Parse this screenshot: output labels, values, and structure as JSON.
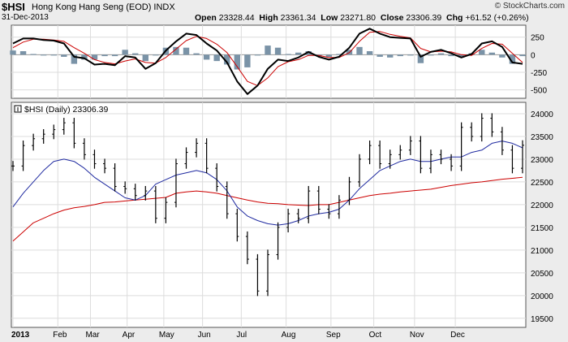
{
  "header": {
    "symbol": "$HSI",
    "name": "Hong Kong Hang Seng (EOD)  INDX",
    "date": "31-Dec-2013",
    "open_label": "Open",
    "open": "23328.44",
    "high_label": "High",
    "high": "23361.34",
    "low_label": "Low",
    "low": "23271.80",
    "close_label": "Close",
    "close": "23306.39",
    "chg_label": "Chg",
    "chg": "+61.52 (+0.26%)",
    "brand": "© StockCharts.com"
  },
  "price_legend": "$HSI (Daily) 23306.39",
  "chart_data": [
    {
      "type": "line",
      "panel": "momentum",
      "title": "",
      "ylim": [
        -620,
        420
      ],
      "yticks": [
        250,
        0,
        -250,
        -500
      ],
      "grid": true,
      "x": [
        0,
        5,
        10,
        15,
        20,
        25,
        30,
        35,
        40,
        45,
        50,
        55,
        60,
        65,
        70,
        75,
        80,
        85,
        90,
        95,
        100,
        105,
        110,
        115,
        120,
        125,
        130,
        135,
        140,
        145,
        150,
        155,
        160,
        165,
        170,
        175,
        180,
        185,
        190,
        195,
        200,
        205,
        210,
        215,
        220,
        225,
        230,
        235,
        240,
        245,
        250
      ],
      "series": [
        {
          "role": "macd",
          "color": "#000000",
          "values": [
            160,
            230,
            230,
            210,
            200,
            160,
            -30,
            -50,
            -140,
            -130,
            -150,
            -20,
            -40,
            -200,
            -120,
            60,
            190,
            300,
            280,
            160,
            60,
            -110,
            -380,
            -560,
            -440,
            -200,
            -70,
            -90,
            -40,
            40,
            -30,
            -70,
            -30,
            100,
            300,
            370,
            300,
            250,
            240,
            230,
            -30,
            40,
            70,
            20,
            -40,
            10,
            160,
            190,
            110,
            -110,
            -130
          ]
        },
        {
          "role": "signal",
          "color": "#cc0000",
          "values": [
            100,
            180,
            220,
            220,
            210,
            190,
            100,
            20,
            -70,
            -110,
            -130,
            -90,
            -60,
            -110,
            -120,
            -40,
            80,
            200,
            260,
            230,
            150,
            30,
            -170,
            -380,
            -440,
            -330,
            -170,
            -100,
            -70,
            -10,
            -10,
            -40,
            -40,
            30,
            190,
            320,
            330,
            290,
            260,
            240,
            90,
            40,
            50,
            40,
            0,
            -10,
            90,
            160,
            150,
            20,
            -110
          ]
        },
        {
          "role": "histogram",
          "color": "#7a93a7",
          "values": [
            60,
            50,
            10,
            -10,
            -10,
            -30,
            -130,
            -70,
            -70,
            -20,
            -20,
            70,
            20,
            -90,
            0,
            100,
            110,
            100,
            20,
            -70,
            -90,
            -140,
            -210,
            -180,
            0,
            130,
            100,
            10,
            30,
            50,
            -20,
            -30,
            10,
            70,
            110,
            50,
            -30,
            -40,
            -20,
            -10,
            -120,
            0,
            20,
            -20,
            -40,
            20,
            70,
            30,
            -40,
            -130,
            -20
          ]
        }
      ]
    },
    {
      "type": "ohlc",
      "panel": "price",
      "title": "$HSI (Daily) 23306.39",
      "ylim": [
        19300,
        24250
      ],
      "yticks": [
        24000,
        23500,
        23000,
        22500,
        22000,
        21500,
        21000,
        20500,
        20000,
        19500
      ],
      "xticks": [
        {
          "label": "2013",
          "x": 0
        },
        {
          "label": "Feb",
          "x": 22
        },
        {
          "label": "Mar",
          "x": 38
        },
        {
          "label": "Apr",
          "x": 56
        },
        {
          "label": "May",
          "x": 74
        },
        {
          "label": "Jun",
          "x": 93
        },
        {
          "label": "Jul",
          "x": 112
        },
        {
          "label": "Aug",
          "x": 134
        },
        {
          "label": "Sep",
          "x": 156
        },
        {
          "label": "Oct",
          "x": 177
        },
        {
          "label": "Nov",
          "x": 197
        },
        {
          "label": "Dec",
          "x": 217
        }
      ],
      "grid": true,
      "x": [
        0,
        5,
        10,
        15,
        20,
        25,
        30,
        35,
        40,
        45,
        50,
        55,
        60,
        65,
        70,
        75,
        80,
        85,
        90,
        95,
        100,
        105,
        110,
        115,
        120,
        125,
        130,
        135,
        140,
        145,
        150,
        155,
        160,
        165,
        170,
        175,
        180,
        185,
        190,
        195,
        200,
        205,
        210,
        215,
        220,
        225,
        230,
        235,
        240,
        245,
        250
      ],
      "series": [
        {
          "role": "close",
          "color": "#000000",
          "values": [
            22850,
            23300,
            23450,
            23550,
            23650,
            23800,
            23350,
            23100,
            22900,
            22800,
            22400,
            22350,
            22200,
            22300,
            21700,
            22050,
            22900,
            23150,
            23350,
            22800,
            22400,
            21800,
            21300,
            20800,
            20100,
            20900,
            21500,
            21800,
            21700,
            22300,
            21900,
            21800,
            22100,
            22500,
            23000,
            23300,
            22900,
            23100,
            23200,
            23400,
            22800,
            23100,
            23000,
            22850,
            23700,
            23500,
            23900,
            23600,
            23200,
            22800,
            23306
          ]
        },
        {
          "role": "ma50",
          "color": "#1f2aa0",
          "values": [
            21950,
            22250,
            22500,
            22750,
            22950,
            23000,
            22950,
            22800,
            22600,
            22450,
            22300,
            22150,
            22100,
            22200,
            22450,
            22550,
            22650,
            22700,
            22750,
            22700,
            22550,
            22300,
            21950,
            21750,
            21650,
            21580,
            21550,
            21580,
            21650,
            21750,
            21800,
            21830,
            21900,
            22100,
            22350,
            22550,
            22750,
            22850,
            22950,
            23000,
            22950,
            22950,
            23000,
            23050,
            23050,
            23150,
            23200,
            23350,
            23400,
            23350,
            23250
          ]
        },
        {
          "role": "ma200",
          "color": "#cc0000",
          "values": [
            21200,
            21400,
            21600,
            21700,
            21800,
            21880,
            21930,
            21960,
            22000,
            22050,
            22060,
            22080,
            22100,
            22120,
            22140,
            22160,
            22250,
            22280,
            22300,
            22280,
            22250,
            22200,
            22150,
            22100,
            22060,
            22030,
            22020,
            22000,
            21990,
            21980,
            22000,
            22000,
            22050,
            22100,
            22150,
            22200,
            22230,
            22250,
            22280,
            22300,
            22320,
            22340,
            22380,
            22420,
            22450,
            22480,
            22500,
            22530,
            22560,
            22580,
            22600
          ]
        }
      ]
    }
  ]
}
